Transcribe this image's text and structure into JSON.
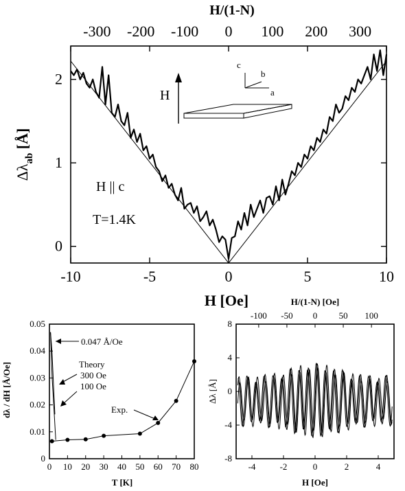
{
  "chart_data": [
    {
      "type": "line",
      "panel": "top",
      "xlabel": "H  [Oe]",
      "x_top_label": "H/(1-N)",
      "ylabel_main": "Δλ",
      "ylabel_sub": "ab",
      "ylabel_unit": " [Å]",
      "xlim": [
        -10,
        10
      ],
      "ylim": [
        -0.2,
        2.4
      ],
      "x_top_lim": [
        -360,
        360
      ],
      "xticks": [
        -10,
        -5,
        0,
        5,
        10
      ],
      "xtick_labels": [
        "-10",
        "-5",
        "0",
        "5",
        "10"
      ],
      "x_top_ticks": [
        -300,
        -200,
        -100,
        0,
        100,
        200,
        300
      ],
      "x_top_tick_labels": [
        "-300",
        "-200",
        "-100",
        "0",
        "100",
        "200",
        "300"
      ],
      "yticks": [
        0,
        1,
        2
      ],
      "ytick_labels": [
        "0",
        "1",
        "2"
      ],
      "annotations": {
        "h_arrow": "H",
        "h_parallel": "H || c",
        "temperature": "T=1.4K",
        "axis_c": "c",
        "axis_b": "b",
        "axis_a": "a"
      },
      "series": [
        {
          "role": "experimental",
          "x": [
            -10,
            -9.8,
            -9.6,
            -9.4,
            -9.2,
            -9,
            -8.8,
            -8.6,
            -8.4,
            -8.2,
            -8,
            -7.8,
            -7.6,
            -7.4,
            -7.2,
            -7,
            -6.8,
            -6.6,
            -6.4,
            -6.2,
            -6,
            -5.8,
            -5.6,
            -5.4,
            -5.2,
            -5,
            -4.8,
            -4.6,
            -4.4,
            -4.2,
            -4,
            -3.8,
            -3.6,
            -3.4,
            -3.2,
            -3,
            -2.8,
            -2.6,
            -2.4,
            -2.2,
            -2,
            -1.8,
            -1.6,
            -1.4,
            -1.2,
            -1,
            -0.8,
            -0.6,
            -0.4,
            -0.2,
            0,
            0.2,
            0.4,
            0.6,
            0.8,
            1,
            1.2,
            1.4,
            1.6,
            1.8,
            2,
            2.2,
            2.4,
            2.6,
            2.8,
            3,
            3.2,
            3.4,
            3.6,
            3.8,
            4,
            4.2,
            4.4,
            4.6,
            4.8,
            5,
            5.2,
            5.4,
            5.6,
            5.8,
            6,
            6.2,
            6.4,
            6.6,
            6.8,
            7,
            7.2,
            7.4,
            7.6,
            7.8,
            8,
            8.2,
            8.4,
            8.6,
            8.8,
            9,
            9.2,
            9.4,
            9.6,
            9.8,
            10
          ],
          "y": [
            2.1,
            2.05,
            2.12,
            2,
            2.08,
            1.95,
            1.9,
            2.0,
            1.85,
            1.78,
            2.15,
            1.7,
            2.05,
            1.6,
            1.55,
            1.7,
            1.5,
            1.45,
            1.6,
            1.3,
            1.4,
            1.25,
            1.35,
            1.15,
            1.2,
            1.05,
            1.1,
            0.95,
            0.9,
            0.78,
            0.85,
            0.7,
            0.75,
            0.62,
            0.55,
            0.7,
            0.45,
            0.5,
            0.52,
            0.4,
            0.48,
            0.3,
            0.35,
            0.42,
            0.25,
            0.32,
            0.2,
            0.05,
            0.12,
            0.08,
            -0.15,
            0.1,
            0.12,
            0.3,
            0.2,
            0.4,
            0.25,
            0.5,
            0.35,
            0.45,
            0.55,
            0.4,
            0.58,
            0.6,
            0.5,
            0.72,
            0.55,
            0.8,
            0.62,
            0.75,
            0.9,
            0.85,
            1.0,
            0.95,
            1.1,
            1.05,
            1.2,
            1.15,
            1.3,
            1.25,
            1.4,
            1.35,
            1.55,
            1.5,
            1.7,
            1.6,
            1.65,
            1.8,
            1.75,
            1.9,
            1.85,
            2.0,
            1.95,
            2.05,
            2.15,
            2.0,
            2.3,
            2.1,
            2.35,
            2.05,
            2.3
          ]
        },
        {
          "role": "linear-fit",
          "x": [
            -10,
            0,
            10
          ],
          "y": [
            2.22,
            -0.2,
            2.22
          ]
        }
      ]
    },
    {
      "type": "line",
      "panel": "bottom-left",
      "xlabel": "T [K]",
      "ylabel": "dλ / dH  [Å/Oe]",
      "xlim": [
        0,
        80
      ],
      "ylim": [
        0,
        0.05
      ],
      "xticks": [
        0,
        10,
        20,
        30,
        40,
        50,
        60,
        70,
        80
      ],
      "xtick_labels": [
        "0",
        "10",
        "20",
        "30",
        "40",
        "50",
        "60",
        "70",
        "80"
      ],
      "yticks": [
        0,
        0.01,
        0.02,
        0.03,
        0.04,
        0.05
      ],
      "ytick_labels": [
        "0",
        "0.01",
        "0.02",
        "0.03",
        "0.04",
        "0.05"
      ],
      "annotations": {
        "value_label": "0.047 Å/Oe",
        "theory_label": "Theory",
        "theory_300": "300 Oe",
        "theory_100": "100 Oe",
        "exp_label": "Exp."
      },
      "series": [
        {
          "role": "Exp.",
          "x": [
            1.4,
            10,
            20,
            30,
            50,
            60,
            70,
            80
          ],
          "y": [
            0.0065,
            0.007,
            0.0072,
            0.0085,
            0.0093,
            0.0133,
            0.0215,
            0.0362
          ]
        },
        {
          "role": "theory-300",
          "x": [
            0.6,
            1.4,
            3.0
          ],
          "y": [
            0.047,
            0.04,
            0.0165
          ]
        },
        {
          "role": "theory-100",
          "x": [
            0.6,
            1.5,
            3.5
          ],
          "y": [
            0.047,
            0.03,
            0.007
          ]
        }
      ]
    },
    {
      "type": "line",
      "panel": "bottom-right",
      "xlabel": "H [Oe]",
      "ylabel": "Δλ [Å]",
      "x_top_label": "H/(1-N) [Oe]",
      "xlim": [
        -5,
        5
      ],
      "ylim": [
        -8,
        8
      ],
      "x_top_lim": [
        -140,
        140
      ],
      "xticks": [
        -4,
        -2,
        0,
        2,
        4
      ],
      "xtick_labels": [
        "-4",
        "-2",
        "0",
        "2",
        "4"
      ],
      "x_top_ticks": [
        -100,
        -50,
        0,
        50,
        100
      ],
      "x_top_tick_labels": [
        "-100",
        "-50",
        "0",
        "50",
        "100"
      ],
      "yticks": [
        -8,
        -4,
        0,
        4,
        8
      ],
      "ytick_labels": [
        "-8",
        "-4",
        "0",
        "4",
        "8"
      ],
      "oscillation": {
        "period_oe": 0.55,
        "amplitude_a": 2.6
      }
    }
  ]
}
